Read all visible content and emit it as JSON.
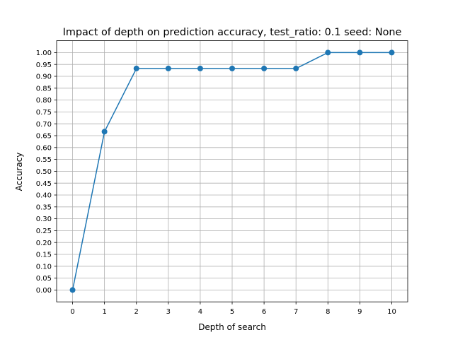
{
  "chart_data": {
    "type": "line",
    "title": "Impact of depth on prediction accuracy, test_ratio: 0.1 seed: None",
    "xlabel": "Depth of search",
    "ylabel": "Accuracy",
    "xlim": [
      -0.5,
      10.5
    ],
    "ylim": [
      -0.05,
      1.05
    ],
    "x_ticks": [
      0,
      1,
      2,
      3,
      4,
      5,
      6,
      7,
      8,
      9,
      10
    ],
    "y_ticks": [
      0.0,
      0.05,
      0.1,
      0.15,
      0.2,
      0.25,
      0.3,
      0.35,
      0.4,
      0.45,
      0.5,
      0.55,
      0.6,
      0.65,
      0.7,
      0.75,
      0.8,
      0.85,
      0.9,
      0.95,
      1.0
    ],
    "grid": true,
    "series": [
      {
        "x": [
          0,
          1,
          2,
          3,
          4,
          5,
          6,
          7,
          8,
          9,
          10
        ],
        "values": [
          0.0,
          0.667,
          0.933,
          0.933,
          0.933,
          0.933,
          0.933,
          0.933,
          1.0,
          1.0,
          1.0
        ],
        "color": "#1f77b4",
        "marker": "circle"
      }
    ],
    "colors": {
      "grid": "#b0b0b0",
      "axis": "#000000"
    }
  }
}
